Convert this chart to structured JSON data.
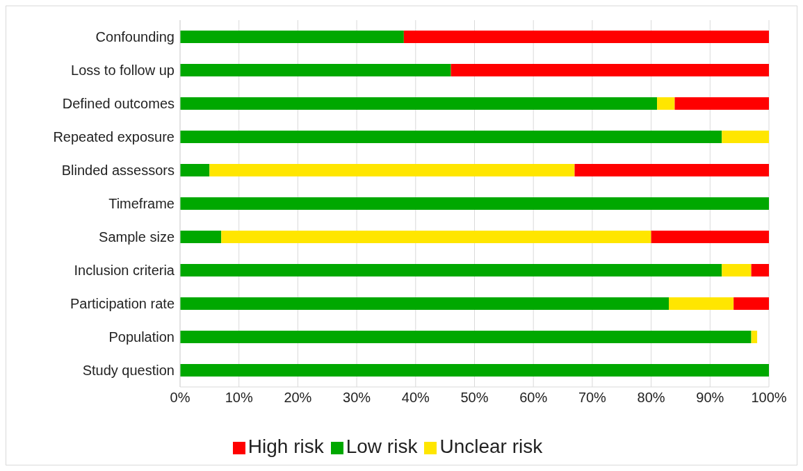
{
  "chart_data": {
    "type": "bar",
    "orientation": "horizontal",
    "stacked": true,
    "categories": [
      "Confounding",
      "Loss to follow up",
      "Defined outcomes",
      "Repeated exposure",
      "Blinded assessors",
      "Timeframe",
      "Sample size",
      "Inclusion criteria ",
      "Participation rate",
      "Population",
      "Study question"
    ],
    "series": [
      {
        "name": "Low risk",
        "color": "#00a800",
        "values": [
          38,
          46,
          81,
          92,
          5,
          100,
          7,
          92,
          83,
          97,
          100
        ]
      },
      {
        "name": "Unclear risk",
        "color": "#ffe600",
        "values": [
          0,
          0,
          3,
          8,
          62,
          0,
          73,
          5,
          11,
          1,
          0
        ]
      },
      {
        "name": "High risk",
        "color": "#ff0000",
        "values": [
          62,
          54,
          16,
          0,
          33,
          0,
          20,
          3,
          6,
          0,
          0
        ]
      }
    ],
    "xlim": [
      0,
      100
    ],
    "xticks": [
      {
        "value": 0,
        "label": "0%"
      },
      {
        "value": 10,
        "label": "10%"
      },
      {
        "value": 20,
        "label": "20%"
      },
      {
        "value": 30,
        "label": "30%"
      },
      {
        "value": 40,
        "label": "40%"
      },
      {
        "value": 50,
        "label": "50%"
      },
      {
        "value": 60,
        "label": "60%"
      },
      {
        "value": 70,
        "label": "70%"
      },
      {
        "value": 80,
        "label": "80%"
      },
      {
        "value": 90,
        "label": "90%"
      },
      {
        "value": 100,
        "label": "100%"
      }
    ],
    "grid": "x",
    "legend": "bottom"
  }
}
